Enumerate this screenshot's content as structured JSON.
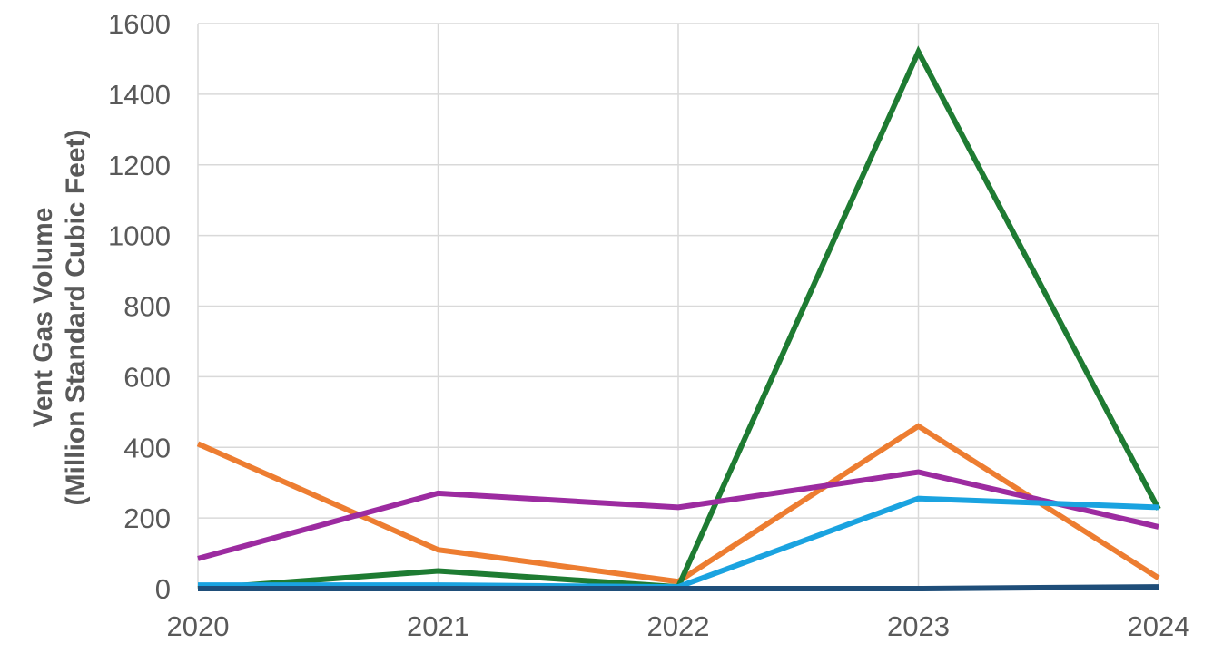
{
  "chart_data": {
    "type": "line",
    "title": "",
    "xlabel": "",
    "ylabel_lines": [
      "Vent Gas Volume",
      "(Million Standard Cubic Feet)"
    ],
    "x": [
      "2020",
      "2021",
      "2022",
      "2023",
      "2024"
    ],
    "ylim": [
      0,
      1600
    ],
    "yticks": [
      "0",
      "200",
      "400",
      "600",
      "800",
      "1000",
      "1200",
      "1400",
      "1600"
    ],
    "grid": true,
    "legend": "none",
    "series": [
      {
        "color": "#ed7d31",
        "values": [
          410,
          110,
          20,
          460,
          30
        ]
      },
      {
        "color": "#1e7b32",
        "values": [
          0,
          50,
          5,
          1520,
          225
        ]
      },
      {
        "color": "#9c2ba0",
        "values": [
          85,
          270,
          230,
          330,
          175
        ]
      },
      {
        "color": "#1aa3e0",
        "values": [
          10,
          10,
          5,
          255,
          230
        ]
      },
      {
        "color": "#1f4e79",
        "values": [
          0,
          0,
          0,
          0,
          5
        ]
      }
    ]
  }
}
